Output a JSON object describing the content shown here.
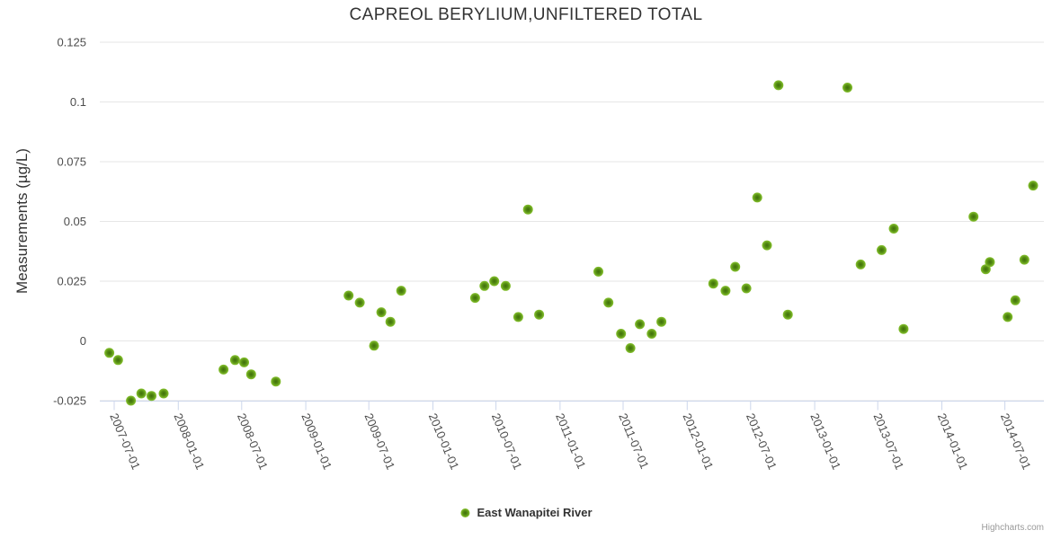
{
  "chart": {
    "title": "CAPREOL BERYLIUM,UNFILTERED TOTAL",
    "credits": "Highcharts.com"
  },
  "legend": {
    "items": [
      {
        "label": "East Wanapitei River"
      }
    ]
  },
  "colors": {
    "marker_center": "#3f6e0b",
    "marker_mid": "#568e13",
    "marker_edge": "#87c32f",
    "gridline": "#e6e6e6",
    "axis_line": "#ccd6eb",
    "title_text": "#333333",
    "tick_text": "#4d4d4d",
    "credits_text": "#999999"
  },
  "chart_data": {
    "type": "scatter",
    "title": "CAPREOL BERYLIUM,UNFILTERED TOTAL",
    "xlabel": "",
    "ylabel": "Measurements (µg/L)",
    "legend_position": "bottom-center",
    "grid": "horizontal-only",
    "ylim": [
      -0.025,
      0.125
    ],
    "y_ticks": [
      {
        "value": -0.025,
        "label": "-0.025"
      },
      {
        "value": 0,
        "label": "0"
      },
      {
        "value": 0.025,
        "label": "0.025"
      },
      {
        "value": 0.05,
        "label": "0.05"
      },
      {
        "value": 0.075,
        "label": "0.075"
      },
      {
        "value": 0.1,
        "label": "0.1"
      },
      {
        "value": 0.125,
        "label": "0.125"
      }
    ],
    "x_tick_labels": [
      "2007-07-01",
      "2008-01-01",
      "2008-07-01",
      "2009-01-01",
      "2009-07-01",
      "2010-01-01",
      "2010-07-01",
      "2011-01-01",
      "2011-07-01",
      "2012-01-01",
      "2012-07-01",
      "2013-01-01",
      "2013-07-01",
      "2014-01-01",
      "2014-07-01"
    ],
    "series": [
      {
        "name": "East Wanapitei River",
        "points": [
          {
            "date": "2007-06-17",
            "value": -0.005
          },
          {
            "date": "2007-07-12",
            "value": -0.008
          },
          {
            "date": "2007-08-18",
            "value": -0.025
          },
          {
            "date": "2007-09-17",
            "value": -0.022
          },
          {
            "date": "2007-10-16",
            "value": -0.023
          },
          {
            "date": "2007-11-20",
            "value": -0.022
          },
          {
            "date": "2008-05-10",
            "value": -0.012
          },
          {
            "date": "2008-06-12",
            "value": -0.008
          },
          {
            "date": "2008-07-08",
            "value": -0.009
          },
          {
            "date": "2008-07-28",
            "value": -0.014
          },
          {
            "date": "2008-10-07",
            "value": -0.017
          },
          {
            "date": "2009-05-04",
            "value": 0.019
          },
          {
            "date": "2009-06-05",
            "value": 0.016
          },
          {
            "date": "2009-07-16",
            "value": -0.002
          },
          {
            "date": "2009-08-06",
            "value": 0.012
          },
          {
            "date": "2009-09-01",
            "value": 0.008
          },
          {
            "date": "2009-10-02",
            "value": 0.021
          },
          {
            "date": "2010-05-02",
            "value": 0.018
          },
          {
            "date": "2010-05-29",
            "value": 0.023
          },
          {
            "date": "2010-06-26",
            "value": 0.025
          },
          {
            "date": "2010-07-29",
            "value": 0.023
          },
          {
            "date": "2010-09-03",
            "value": 0.01
          },
          {
            "date": "2010-10-01",
            "value": 0.055
          },
          {
            "date": "2010-11-02",
            "value": 0.011
          },
          {
            "date": "2011-04-21",
            "value": 0.029
          },
          {
            "date": "2011-05-20",
            "value": 0.016
          },
          {
            "date": "2011-06-25",
            "value": 0.003
          },
          {
            "date": "2011-07-22",
            "value": -0.003
          },
          {
            "date": "2011-08-18",
            "value": 0.007
          },
          {
            "date": "2011-09-21",
            "value": 0.003
          },
          {
            "date": "2011-10-19",
            "value": 0.008
          },
          {
            "date": "2012-03-16",
            "value": 0.024
          },
          {
            "date": "2012-04-20",
            "value": 0.021
          },
          {
            "date": "2012-05-18",
            "value": 0.031
          },
          {
            "date": "2012-06-19",
            "value": 0.022
          },
          {
            "date": "2012-07-20",
            "value": 0.06
          },
          {
            "date": "2012-08-17",
            "value": 0.04
          },
          {
            "date": "2012-09-19",
            "value": 0.107
          },
          {
            "date": "2012-10-16",
            "value": 0.011
          },
          {
            "date": "2013-04-05",
            "value": 0.106
          },
          {
            "date": "2013-05-13",
            "value": 0.032
          },
          {
            "date": "2013-07-12",
            "value": 0.038
          },
          {
            "date": "2013-08-16",
            "value": 0.047
          },
          {
            "date": "2013-09-13",
            "value": 0.005
          },
          {
            "date": "2014-04-02",
            "value": 0.052
          },
          {
            "date": "2014-05-07",
            "value": 0.03
          },
          {
            "date": "2014-05-19",
            "value": 0.033
          },
          {
            "date": "2014-07-09",
            "value": 0.01
          },
          {
            "date": "2014-07-31",
            "value": 0.017
          },
          {
            "date": "2014-08-26",
            "value": 0.034
          },
          {
            "date": "2014-09-20",
            "value": 0.065
          }
        ]
      }
    ]
  }
}
